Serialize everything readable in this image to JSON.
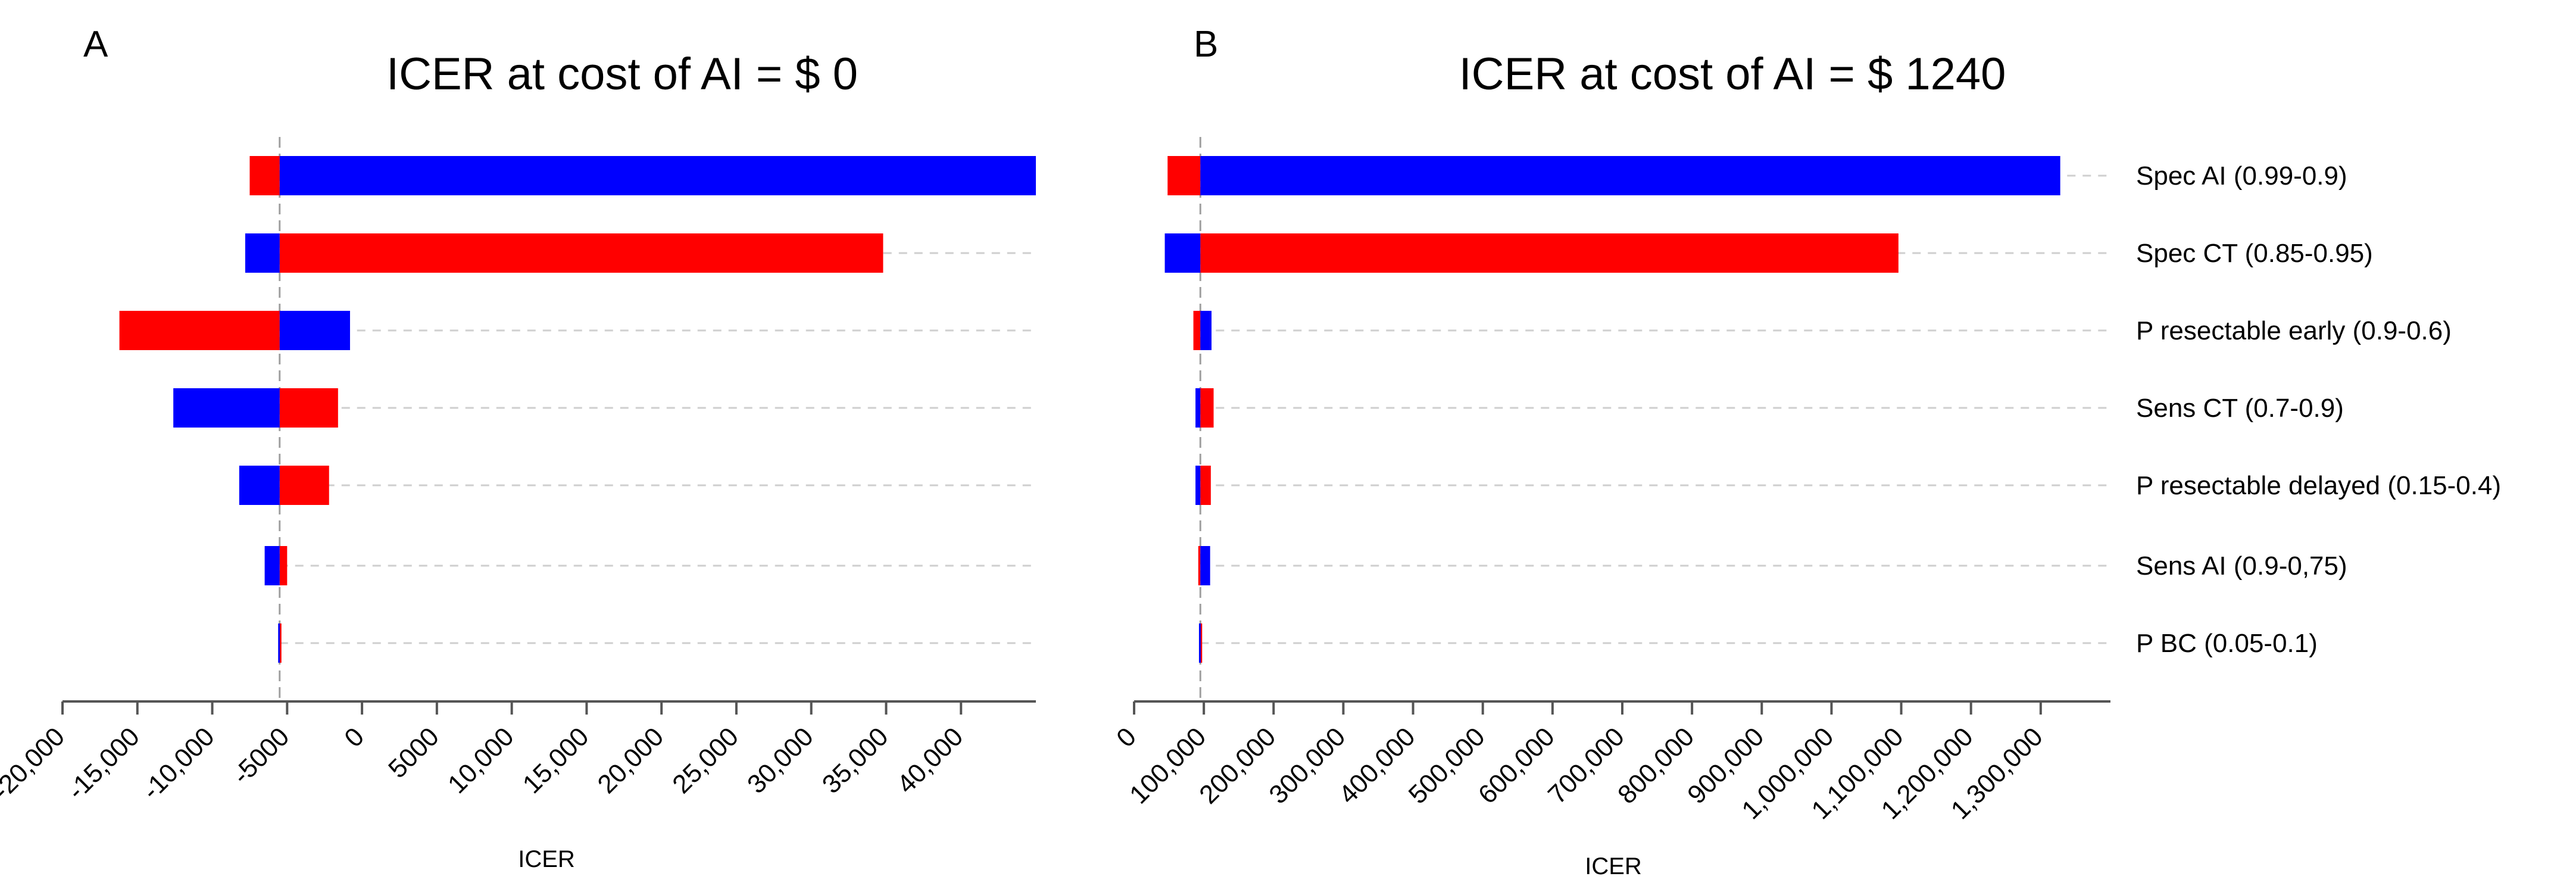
{
  "chart_data": [
    {
      "type": "tornado",
      "panel": "A",
      "title": "ICER at cost of AI = $ 0",
      "xlabel": "ICER",
      "xlim": [
        -20000,
        45000
      ],
      "base_value": -5500,
      "ticks": [
        {
          "value": -20000,
          "label": "-20,000"
        },
        {
          "value": -15000,
          "label": "-15,000"
        },
        {
          "value": -10000,
          "label": "-10,000"
        },
        {
          "value": -5000,
          "label": "-5000"
        },
        {
          "value": 0,
          "label": "0"
        },
        {
          "value": 5000,
          "label": "5000"
        },
        {
          "value": 10000,
          "label": "10,000"
        },
        {
          "value": 15000,
          "label": "15,000"
        },
        {
          "value": 20000,
          "label": "20,000"
        },
        {
          "value": 25000,
          "label": "25,000"
        },
        {
          "value": 30000,
          "label": "30,000"
        },
        {
          "value": 35000,
          "label": "35,000"
        },
        {
          "value": 40000,
          "label": "40,000"
        }
      ],
      "bars": [
        {
          "param": "Spec AI (0.99-0.9)",
          "red": -7500,
          "blue": 45000
        },
        {
          "param": "Spec CT (0.85-0.95)",
          "red": 34800,
          "blue": -7800
        },
        {
          "param": "P resectable early (0.9-0.6)",
          "red": -16200,
          "blue": -800
        },
        {
          "param": "Sens CT (0.7-0.9)",
          "red": -1600,
          "blue": -12600
        },
        {
          "param": "P resectable delayed (0.15-0.4)",
          "red": -2200,
          "blue": -8200
        },
        {
          "param": "Sens AI (0.9-0,75)",
          "red": -5000,
          "blue": -6500
        },
        {
          "param": "P BC (0.05-0.1)",
          "red": -5450,
          "blue": -5600
        }
      ]
    },
    {
      "type": "tornado",
      "panel": "B",
      "title": "ICER at cost of AI = $ 1240",
      "xlabel": "ICER",
      "xlim": [
        0,
        1400000
      ],
      "base_value": 95000,
      "ticks": [
        {
          "value": 0,
          "label": "0"
        },
        {
          "value": 100000,
          "label": "100,000"
        },
        {
          "value": 200000,
          "label": "200,000"
        },
        {
          "value": 300000,
          "label": "300,000"
        },
        {
          "value": 400000,
          "label": "400,000"
        },
        {
          "value": 500000,
          "label": "500,000"
        },
        {
          "value": 600000,
          "label": "600,000"
        },
        {
          "value": 700000,
          "label": "700,000"
        },
        {
          "value": 800000,
          "label": "800,000"
        },
        {
          "value": 900000,
          "label": "900,000"
        },
        {
          "value": 1000000,
          "label": "1,000,000"
        },
        {
          "value": 1100000,
          "label": "1,100,000"
        },
        {
          "value": 1200000,
          "label": "1,200,000"
        },
        {
          "value": 1300000,
          "label": "1,300,000"
        }
      ],
      "bars": [
        {
          "param": "Spec AI (0.99-0.9)",
          "red": 48000,
          "blue": 1328000
        },
        {
          "param": "Spec CT (0.85-0.95)",
          "red": 1096000,
          "blue": 44000
        },
        {
          "param": "P resectable early (0.9-0.6)",
          "red": 85000,
          "blue": 111000
        },
        {
          "param": "Sens CT (0.7-0.9)",
          "red": 114000,
          "blue": 88000
        },
        {
          "param": "P resectable delayed (0.15-0.4)",
          "red": 110000,
          "blue": 88000
        },
        {
          "param": "Sens AI (0.9-0,75)",
          "red": 92000,
          "blue": 109000
        },
        {
          "param": "P BC (0.05-0.1)",
          "red": 97000,
          "blue": 93000
        }
      ]
    }
  ],
  "colors": {
    "red": "#ff0000",
    "blue": "#0000ff",
    "axis": "#555555",
    "guide": "#cfcfcf",
    "base": "#a0a0a0"
  },
  "param_labels": [
    "Spec AI (0.99-0.9)",
    "Spec CT (0.85-0.95)",
    "P resectable early (0.9-0.6)",
    "Sens CT (0.7-0.9)",
    "P resectable delayed (0.15-0.4)",
    "Sens AI (0.9-0,75)",
    "P BC (0.05-0.1)"
  ]
}
